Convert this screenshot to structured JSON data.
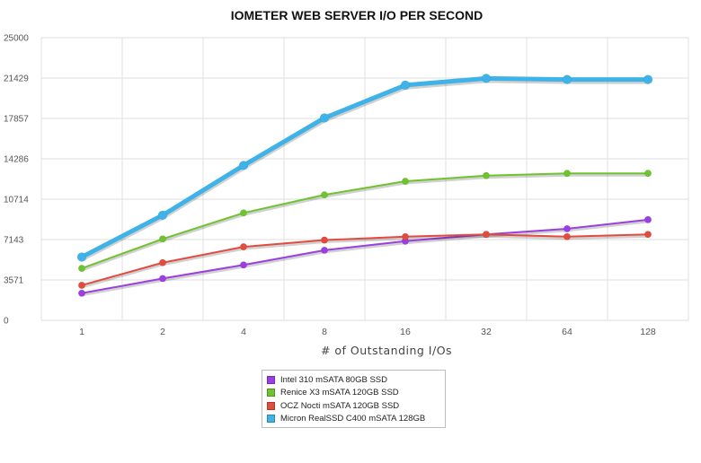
{
  "chart_data": {
    "type": "line",
    "title": "IOMETER WEB SERVER I/O PER SECOND",
    "xlabel": "# of Outstanding I/Os",
    "ylabel": "",
    "categories": [
      "1",
      "2",
      "4",
      "8",
      "16",
      "32",
      "64",
      "128"
    ],
    "y_ticks": [
      "0",
      "3571",
      "7143",
      "10714",
      "14286",
      "17857",
      "21429",
      "25000"
    ],
    "ylim": [
      0,
      25000
    ],
    "grid": true,
    "legend_position": "bottom",
    "series": [
      {
        "name": "Intel 310 mSATA 80GB SSD",
        "color": "#9b3fe0",
        "values": [
          2400,
          3700,
          4900,
          6200,
          7000,
          7600,
          8100,
          8900
        ]
      },
      {
        "name": "Renice X3 mSATA 120GB SSD",
        "color": "#6ec32f",
        "values": [
          4600,
          7200,
          9500,
          11100,
          12300,
          12800,
          13000,
          13000
        ]
      },
      {
        "name": "OCZ Nocti mSATA 120GB SSD",
        "color": "#e24c3f",
        "values": [
          3100,
          5100,
          6500,
          7100,
          7400,
          7600,
          7400,
          7600
        ]
      },
      {
        "name": "Micron RealSSD C400 mSATA 128GB",
        "color": "#3fb2e8",
        "values": [
          5600,
          9300,
          13700,
          17900,
          20800,
          21400,
          21300,
          21300
        ]
      }
    ]
  }
}
